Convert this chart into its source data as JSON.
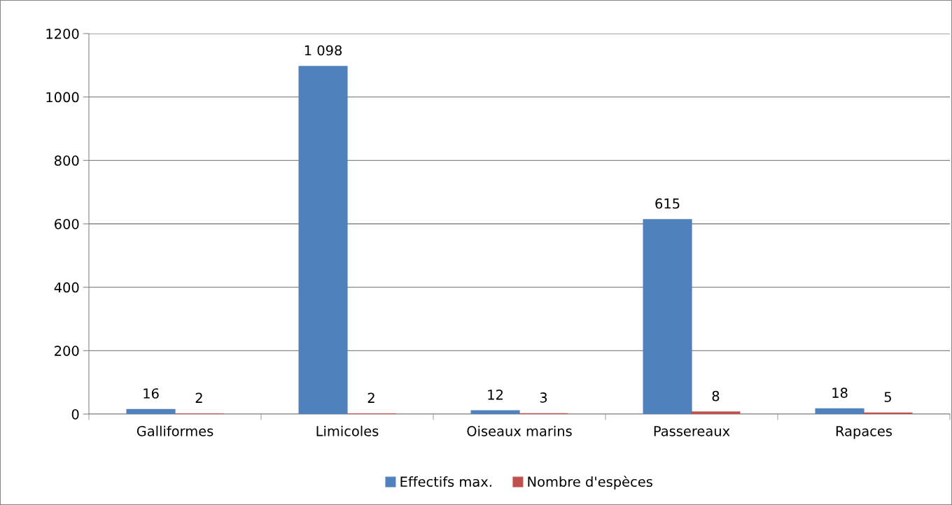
{
  "chart_data": {
    "type": "bar",
    "categories": [
      "Galliformes",
      "Limicoles",
      "Oiseaux marins",
      "Passereaux",
      "Rapaces"
    ],
    "series": [
      {
        "name": "Effectifs max.",
        "color": "#4f81bd",
        "values": [
          16,
          1098,
          12,
          615,
          18
        ],
        "value_labels": [
          "16",
          "1 098",
          "12",
          "615",
          "18"
        ]
      },
      {
        "name": "Nombre d'espèces",
        "color": "#c0504d",
        "values": [
          2,
          2,
          3,
          8,
          5
        ],
        "value_labels": [
          "2",
          "2",
          "3",
          "8",
          "5"
        ]
      }
    ],
    "ylim": [
      0,
      1200
    ],
    "yticks": [
      0,
      200,
      400,
      600,
      800,
      1000,
      1200
    ],
    "grid": "y",
    "legend": "bottom"
  }
}
